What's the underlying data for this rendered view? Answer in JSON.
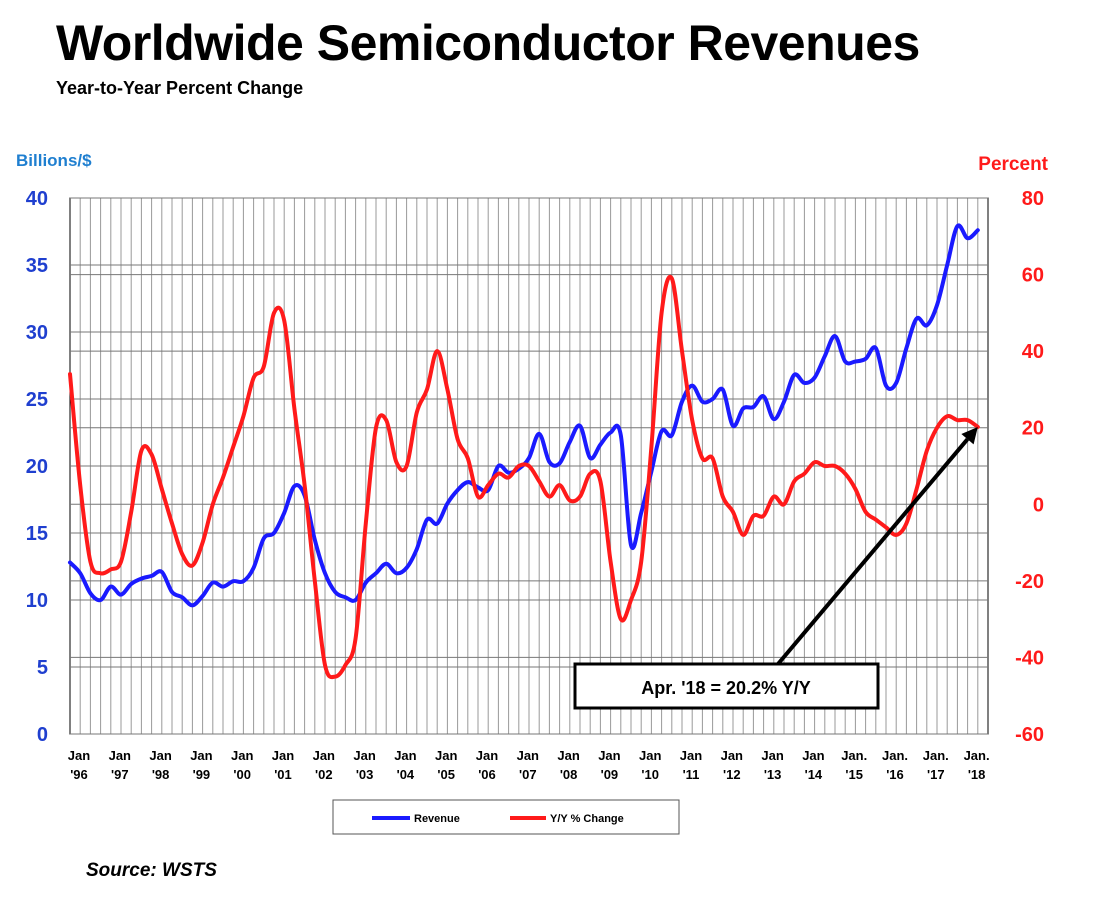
{
  "header": {
    "title": "Worldwide Semiconductor Revenues",
    "subtitle": "Year-to-Year Percent Change"
  },
  "footer": {
    "source": "Source: WSTS"
  },
  "colors": {
    "revenue": "#1a1aff",
    "yoy": "#ff1a1a",
    "left_axis": "#1f3fcf",
    "right_axis": "#ff1a1a",
    "grid": "#999999"
  },
  "chart_data": {
    "type": "line",
    "title": "Worldwide Semiconductor Revenues",
    "subtitle": "Year-to-Year Percent Change",
    "left_axis": {
      "label": "Billions/$",
      "ylim": [
        0,
        40
      ],
      "ticks": [
        "0",
        "5",
        "10",
        "15",
        "20",
        "25",
        "30",
        "35",
        "40"
      ]
    },
    "right_axis": {
      "label": "Percent",
      "ylim": [
        -60,
        80
      ],
      "ticks": [
        "-60",
        "-40",
        "-20",
        "0",
        "20",
        "40",
        "60",
        "80"
      ]
    },
    "x_ticks": [
      [
        "Jan",
        "'96"
      ],
      [
        "Jan",
        "'97"
      ],
      [
        "Jan",
        "'98"
      ],
      [
        "Jan",
        "'99"
      ],
      [
        "Jan",
        "'00"
      ],
      [
        "Jan",
        "'01"
      ],
      [
        "Jan",
        "'02"
      ],
      [
        "Jan",
        "'03"
      ],
      [
        "Jan",
        "'04"
      ],
      [
        "Jan",
        "'05"
      ],
      [
        "Jan",
        "'06"
      ],
      [
        "Jan",
        "'07"
      ],
      [
        "Jan",
        "'08"
      ],
      [
        "Jan",
        "'09"
      ],
      [
        "Jan",
        "'10"
      ],
      [
        "Jan",
        "'11"
      ],
      [
        "Jan",
        "'12"
      ],
      [
        "Jan",
        "'13"
      ],
      [
        "Jan",
        "'14"
      ],
      [
        "Jan.",
        "'15"
      ],
      [
        "Jan.",
        "'16"
      ],
      [
        "Jan.",
        "'17"
      ],
      [
        "Jan.",
        "'18"
      ]
    ],
    "grid": true,
    "legend_position": "bottom-center",
    "series": [
      {
        "name": "Revenue",
        "axis": "left",
        "points": [
          [
            "1996-01",
            12.8
          ],
          [
            "1996-04",
            12.0
          ],
          [
            "1996-07",
            10.5
          ],
          [
            "1996-10",
            10.0
          ],
          [
            "1997-01",
            11.0
          ],
          [
            "1997-04",
            10.4
          ],
          [
            "1997-07",
            11.2
          ],
          [
            "1997-10",
            11.6
          ],
          [
            "1998-01",
            11.8
          ],
          [
            "1998-04",
            12.1
          ],
          [
            "1998-07",
            10.6
          ],
          [
            "1998-10",
            10.2
          ],
          [
            "1999-01",
            9.6
          ],
          [
            "1999-04",
            10.3
          ],
          [
            "1999-07",
            11.3
          ],
          [
            "1999-10",
            11.0
          ],
          [
            "2000-01",
            11.4
          ],
          [
            "2000-04",
            11.4
          ],
          [
            "2000-07",
            12.4
          ],
          [
            "2000-10",
            14.6
          ],
          [
            "2001-01",
            15.0
          ],
          [
            "2001-04",
            16.5
          ],
          [
            "2001-07",
            18.5
          ],
          [
            "2001-10",
            17.8
          ],
          [
            "2002-01",
            14.5
          ],
          [
            "2002-04",
            12.0
          ],
          [
            "2002-07",
            10.6
          ],
          [
            "2002-10",
            10.2
          ],
          [
            "2003-01",
            10.0
          ],
          [
            "2003-04",
            11.3
          ],
          [
            "2003-07",
            12.0
          ],
          [
            "2003-10",
            12.7
          ],
          [
            "2004-01",
            12.0
          ],
          [
            "2004-04",
            12.4
          ],
          [
            "2004-07",
            13.8
          ],
          [
            "2004-10",
            16.0
          ],
          [
            "2005-01",
            15.7
          ],
          [
            "2005-04",
            17.2
          ],
          [
            "2005-07",
            18.2
          ],
          [
            "2005-10",
            18.8
          ],
          [
            "2006-01",
            18.4
          ],
          [
            "2006-04",
            18.2
          ],
          [
            "2006-07",
            20.0
          ],
          [
            "2006-10",
            19.5
          ],
          [
            "2007-01",
            19.8
          ],
          [
            "2007-04",
            20.6
          ],
          [
            "2007-07",
            22.4
          ],
          [
            "2007-10",
            20.3
          ],
          [
            "2008-01",
            20.2
          ],
          [
            "2008-04",
            21.8
          ],
          [
            "2008-07",
            23.0
          ],
          [
            "2008-10",
            20.6
          ],
          [
            "2009-01",
            21.6
          ],
          [
            "2009-04",
            22.5
          ],
          [
            "2009-07",
            22.3
          ],
          [
            "2009-10",
            14.1
          ],
          [
            "2010-01",
            16.5
          ],
          [
            "2010-04",
            19.6
          ],
          [
            "2010-07",
            22.6
          ],
          [
            "2010-10",
            22.3
          ],
          [
            "2011-01",
            24.8
          ],
          [
            "2011-04",
            26.0
          ],
          [
            "2011-07",
            24.8
          ],
          [
            "2011-10",
            25.0
          ],
          [
            "2012-01",
            25.7
          ],
          [
            "2012-04",
            23.0
          ],
          [
            "2012-07",
            24.3
          ],
          [
            "2012-10",
            24.4
          ],
          [
            "2013-01",
            25.2
          ],
          [
            "2013-04",
            23.5
          ],
          [
            "2013-07",
            24.8
          ],
          [
            "2013-10",
            26.8
          ],
          [
            "2014-01",
            26.2
          ],
          [
            "2014-04",
            26.6
          ],
          [
            "2014-07",
            28.2
          ],
          [
            "2014-10",
            29.7
          ],
          [
            "2015-01",
            27.8
          ],
          [
            "2015-04",
            27.8
          ],
          [
            "2015-07",
            28.0
          ],
          [
            "2015-10",
            28.8
          ],
          [
            "2016-01",
            26.0
          ],
          [
            "2016-04",
            26.2
          ],
          [
            "2016-07",
            28.8
          ],
          [
            "2016-10",
            31.0
          ],
          [
            "2017-01",
            30.5
          ],
          [
            "2017-04",
            32.0
          ],
          [
            "2017-07",
            35.0
          ],
          [
            "2017-10",
            37.9
          ],
          [
            "2018-01",
            37.0
          ],
          [
            "2018-04",
            37.6
          ]
        ]
      },
      {
        "name": "Y/Y % Change",
        "axis": "right",
        "points": [
          [
            "1996-01",
            34
          ],
          [
            "1996-04",
            5
          ],
          [
            "1996-07",
            -15
          ],
          [
            "1996-10",
            -18
          ],
          [
            "1997-01",
            -17
          ],
          [
            "1997-04",
            -15
          ],
          [
            "1997-07",
            -2
          ],
          [
            "1997-10",
            14
          ],
          [
            "1998-01",
            13
          ],
          [
            "1998-04",
            4
          ],
          [
            "1998-07",
            -5
          ],
          [
            "1998-10",
            -13
          ],
          [
            "1999-01",
            -16
          ],
          [
            "1999-04",
            -10
          ],
          [
            "1999-07",
            0
          ],
          [
            "1999-10",
            7
          ],
          [
            "2000-01",
            15
          ],
          [
            "2000-04",
            23
          ],
          [
            "2000-07",
            33
          ],
          [
            "2000-10",
            36
          ],
          [
            "2001-01",
            50
          ],
          [
            "2001-04",
            48
          ],
          [
            "2001-07",
            25
          ],
          [
            "2001-10",
            5
          ],
          [
            "2002-01",
            -20
          ],
          [
            "2002-04",
            -42
          ],
          [
            "2002-07",
            -45
          ],
          [
            "2002-10",
            -42
          ],
          [
            "2003-01",
            -35
          ],
          [
            "2003-04",
            -5
          ],
          [
            "2003-07",
            20
          ],
          [
            "2003-10",
            22
          ],
          [
            "2004-01",
            11
          ],
          [
            "2004-04",
            10
          ],
          [
            "2004-07",
            24
          ],
          [
            "2004-10",
            30
          ],
          [
            "2005-01",
            40
          ],
          [
            "2005-04",
            30
          ],
          [
            "2005-07",
            17
          ],
          [
            "2005-10",
            12
          ],
          [
            "2006-01",
            2
          ],
          [
            "2006-04",
            5
          ],
          [
            "2006-07",
            8
          ],
          [
            "2006-10",
            7
          ],
          [
            "2007-01",
            10
          ],
          [
            "2007-04",
            10
          ],
          [
            "2007-07",
            6
          ],
          [
            "2007-10",
            2
          ],
          [
            "2008-01",
            5
          ],
          [
            "2008-04",
            1
          ],
          [
            "2008-07",
            2
          ],
          [
            "2008-10",
            8
          ],
          [
            "2009-01",
            6
          ],
          [
            "2009-04",
            -15
          ],
          [
            "2009-07",
            -30
          ],
          [
            "2009-10",
            -25
          ],
          [
            "2010-01",
            -15
          ],
          [
            "2010-04",
            15
          ],
          [
            "2010-07",
            50
          ],
          [
            "2010-10",
            59
          ],
          [
            "2011-01",
            40
          ],
          [
            "2011-04",
            22
          ],
          [
            "2011-07",
            12
          ],
          [
            "2011-10",
            12
          ],
          [
            "2012-01",
            2
          ],
          [
            "2012-04",
            -2
          ],
          [
            "2012-07",
            -8
          ],
          [
            "2012-10",
            -3
          ],
          [
            "2013-01",
            -3
          ],
          [
            "2013-04",
            2
          ],
          [
            "2013-07",
            0
          ],
          [
            "2013-10",
            6
          ],
          [
            "2014-01",
            8
          ],
          [
            "2014-04",
            11
          ],
          [
            "2014-07",
            10
          ],
          [
            "2014-10",
            10
          ],
          [
            "2015-01",
            8
          ],
          [
            "2015-04",
            4
          ],
          [
            "2015-07",
            -2
          ],
          [
            "2015-10",
            -4
          ],
          [
            "2016-01",
            -6
          ],
          [
            "2016-04",
            -8
          ],
          [
            "2016-07",
            -5
          ],
          [
            "2016-10",
            4
          ],
          [
            "2017-01",
            14
          ],
          [
            "2017-04",
            20
          ],
          [
            "2017-07",
            23
          ],
          [
            "2017-10",
            22
          ],
          [
            "2018-01",
            22
          ],
          [
            "2018-04",
            20.2
          ]
        ]
      }
    ],
    "annotation": {
      "text": "Apr. '18 = 20.2% Y/Y",
      "target_date": "2018-04",
      "target_value": 20.2
    }
  }
}
